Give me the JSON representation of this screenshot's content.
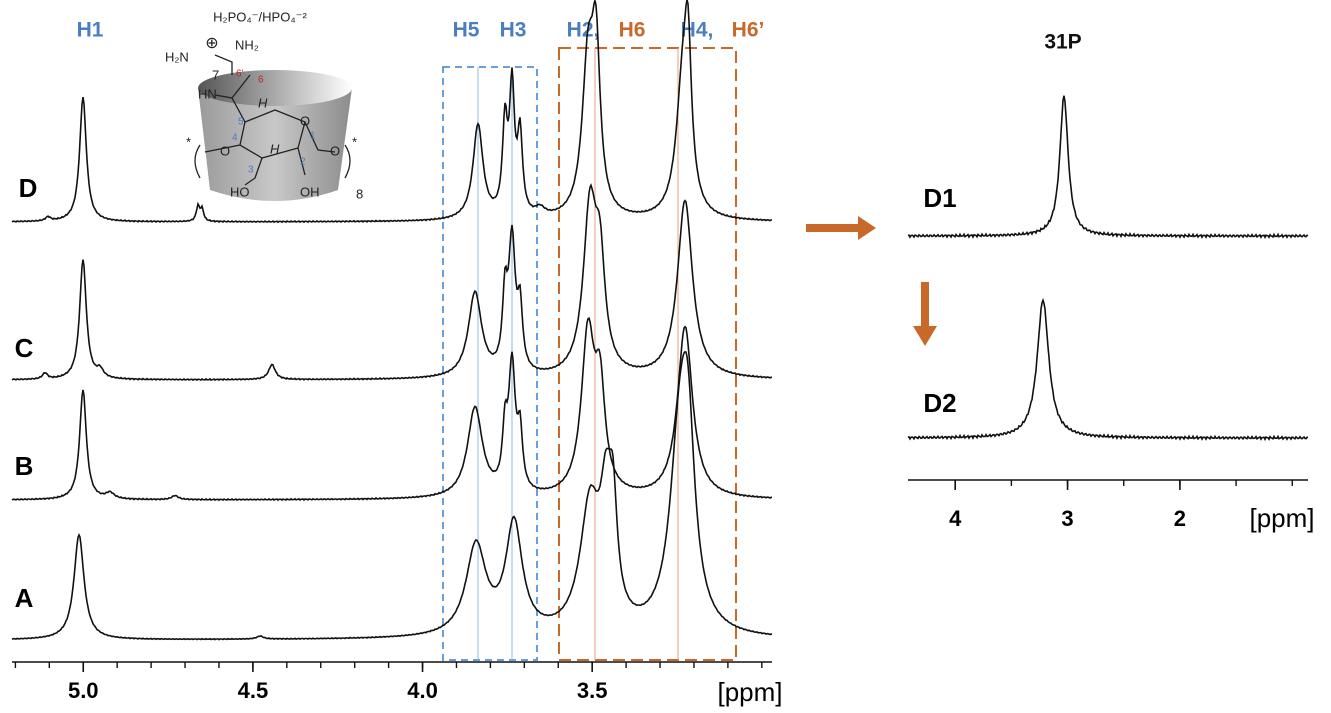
{
  "spectrum_1H": {
    "peak_labels": [
      {
        "text": "H1",
        "color": "#4a7ebf"
      },
      {
        "text": "H5",
        "color": "#4a7ebf"
      },
      {
        "text": "H3",
        "color": "#4a7ebf"
      },
      {
        "text": "H2,",
        "color": "#4a7ebf"
      },
      {
        "text": "H6",
        "color": "#c8692a"
      },
      {
        "text": "H4,",
        "color": "#4a7ebf"
      },
      {
        "text": "H6’",
        "color": "#c8692a"
      }
    ],
    "trace_labels": [
      "D",
      "C",
      "B",
      "A"
    ],
    "axis": {
      "xlim": [
        5.21,
        2.97
      ],
      "xticks": [
        {
          "value": 5,
          "label": "5.0"
        },
        4.5,
        {
          "value": 4,
          "label": "4.0"
        },
        3.5
      ],
      "unit": "[ppm]"
    }
  },
  "spectrum_31P": {
    "title": "31P",
    "trace_labels": [
      "D1",
      "D2"
    ],
    "axis": {
      "xlim": [
        4.42,
        0.86
      ],
      "xticks": [
        4,
        3,
        2
      ],
      "unit": "[ppm]"
    }
  },
  "structure": {
    "counterion": "H₂PO₄⁻/HPO₄⁻²",
    "charge": "⊕",
    "nh2_top": "NH₂",
    "nh2_left": "H₂N",
    "c7": "7",
    "c6p": "6’",
    "c6": "6",
    "hn": "HN",
    "h_top": "H",
    "h_mid": "H",
    "c5": "5",
    "c4": "4",
    "c3": "3",
    "c2": "2",
    "c1": "1",
    "o_ring": "O",
    "o_left": "O",
    "o_right": "O",
    "ho": "HO",
    "oh": "OH",
    "star_left": "*",
    "star_right": "*",
    "repeat": "8"
  }
}
